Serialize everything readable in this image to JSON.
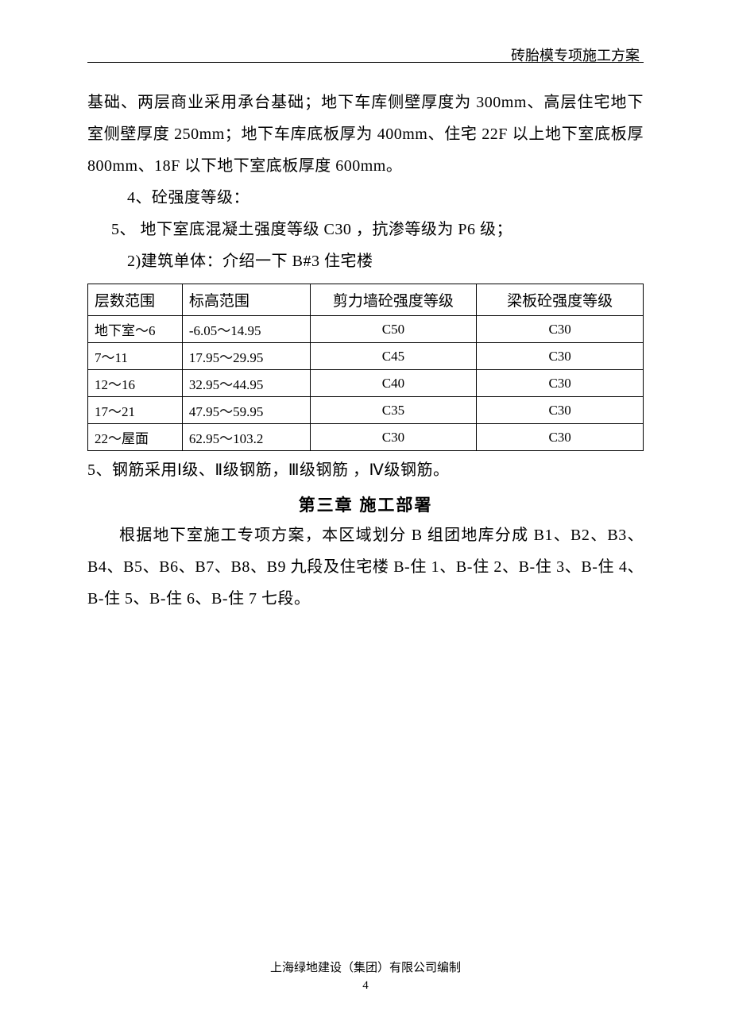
{
  "header": {
    "title": "砖胎模专项施工方案"
  },
  "paragraphs": {
    "p1": "基础、两层商业采用承台基础；地下车库侧壁厚度为 300mm、高层住宅地下室侧壁厚度 250mm；地下车库底板厚为 400mm、住宅 22F 以上地下室底板厚800mm、18F 以下地下室底板厚度 600mm。",
    "p2": "4、砼强度等级：",
    "p3": "5、 地下室底混凝土强度等级 C30 ，抗渗等级为 P6 级；",
    "p4": "2)建筑单体：介绍一下 B#3 住宅楼",
    "p5": "5、钢筋采用Ⅰ级、Ⅱ级钢筋，Ⅲ级钢筋 ，Ⅳ级钢筋。",
    "chapter": "第三章  施工部署",
    "p6": "根据地下室施工专项方案，本区域划分 B 组团地库分成 B1、B2、B3、B4、B5、B6、B7、B8、B9 九段及住宅楼 B-住 1、B-住 2、B-住 3、B-住 4、B-住 5、B-住 6、B-住 7 七段。"
  },
  "table": {
    "headers": {
      "h1": "层数范围",
      "h2": "标高范围",
      "h3": "剪力墙砼强度等级",
      "h4": "梁板砼强度等级"
    },
    "rows": [
      {
        "c1": "地下室～6",
        "c2": "-6.05～14.95",
        "c3": "C50",
        "c4": "C30"
      },
      {
        "c1": "7～11",
        "c2": "17.95～29.95",
        "c3": "C45",
        "c4": "C30"
      },
      {
        "c1": "12～16",
        "c2": "32.95～44.95",
        "c3": "C40",
        "c4": "C30"
      },
      {
        "c1": "17～21",
        "c2": "47.95～59.95",
        "c3": "C35",
        "c4": "C30"
      },
      {
        "c1": "22～屋面",
        "c2": "62.95～103.2",
        "c3": "C30",
        "c4": "C30"
      }
    ]
  },
  "footer": {
    "company": "上海绿地建设（集团）有限公司编制",
    "page": "4"
  }
}
